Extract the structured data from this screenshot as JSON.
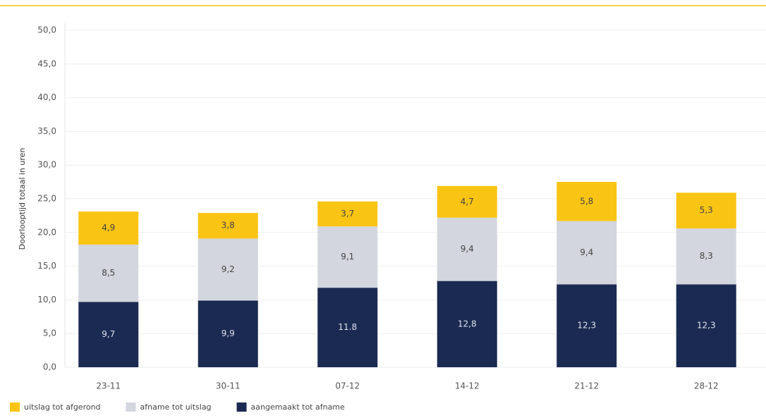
{
  "chart_data": {
    "type": "stacked_bar",
    "y_label": "Doorlooptijd totaal in uren",
    "categories": [
      "23-11",
      "30-11",
      "07-12",
      "14-12",
      "21-12",
      "28-12"
    ],
    "series": [
      {
        "name": "uitslag tot afgerond",
        "color": "#f9c414",
        "values": [
          4.9,
          3.8,
          3.7,
          4.7,
          5.8,
          5.3
        ],
        "value_labels": [
          "4,9",
          "3,8",
          "3,7",
          "4,7",
          "5,8",
          "5,3"
        ]
      },
      {
        "name": "afname tot uitslag",
        "color": "#d3d6de",
        "values": [
          8.5,
          9.2,
          9.1,
          9.4,
          9.4,
          8.3
        ],
        "value_labels": [
          "8,5",
          "9,2",
          "9,1",
          "9,4",
          "9,4",
          "8,3"
        ]
      },
      {
        "name": "aangemaakt tot afname",
        "color": "#1b2a52",
        "values": [
          9.7,
          9.9,
          11.8,
          12.8,
          12.3,
          12.3
        ],
        "value_labels": [
          "9,7",
          "9,9",
          "11.8",
          "12,8",
          "12,3",
          "12,3"
        ]
      }
    ],
    "ylim": [
      0,
      50
    ],
    "yticks": [
      {
        "value": 0,
        "label": "0,0"
      },
      {
        "value": 5,
        "label": "5,0"
      },
      {
        "value": 10,
        "label": "10,0"
      },
      {
        "value": 15,
        "label": "15,0"
      },
      {
        "value": 20,
        "label": "20,0"
      },
      {
        "value": 25,
        "label": "25,0"
      },
      {
        "value": 30,
        "label": "30,0"
      },
      {
        "value": 35,
        "label": "35,0"
      },
      {
        "value": 40,
        "label": "40,0"
      },
      {
        "value": 45,
        "label": "45,0"
      },
      {
        "value": 50,
        "label": "50,0"
      }
    ],
    "grid": true
  }
}
